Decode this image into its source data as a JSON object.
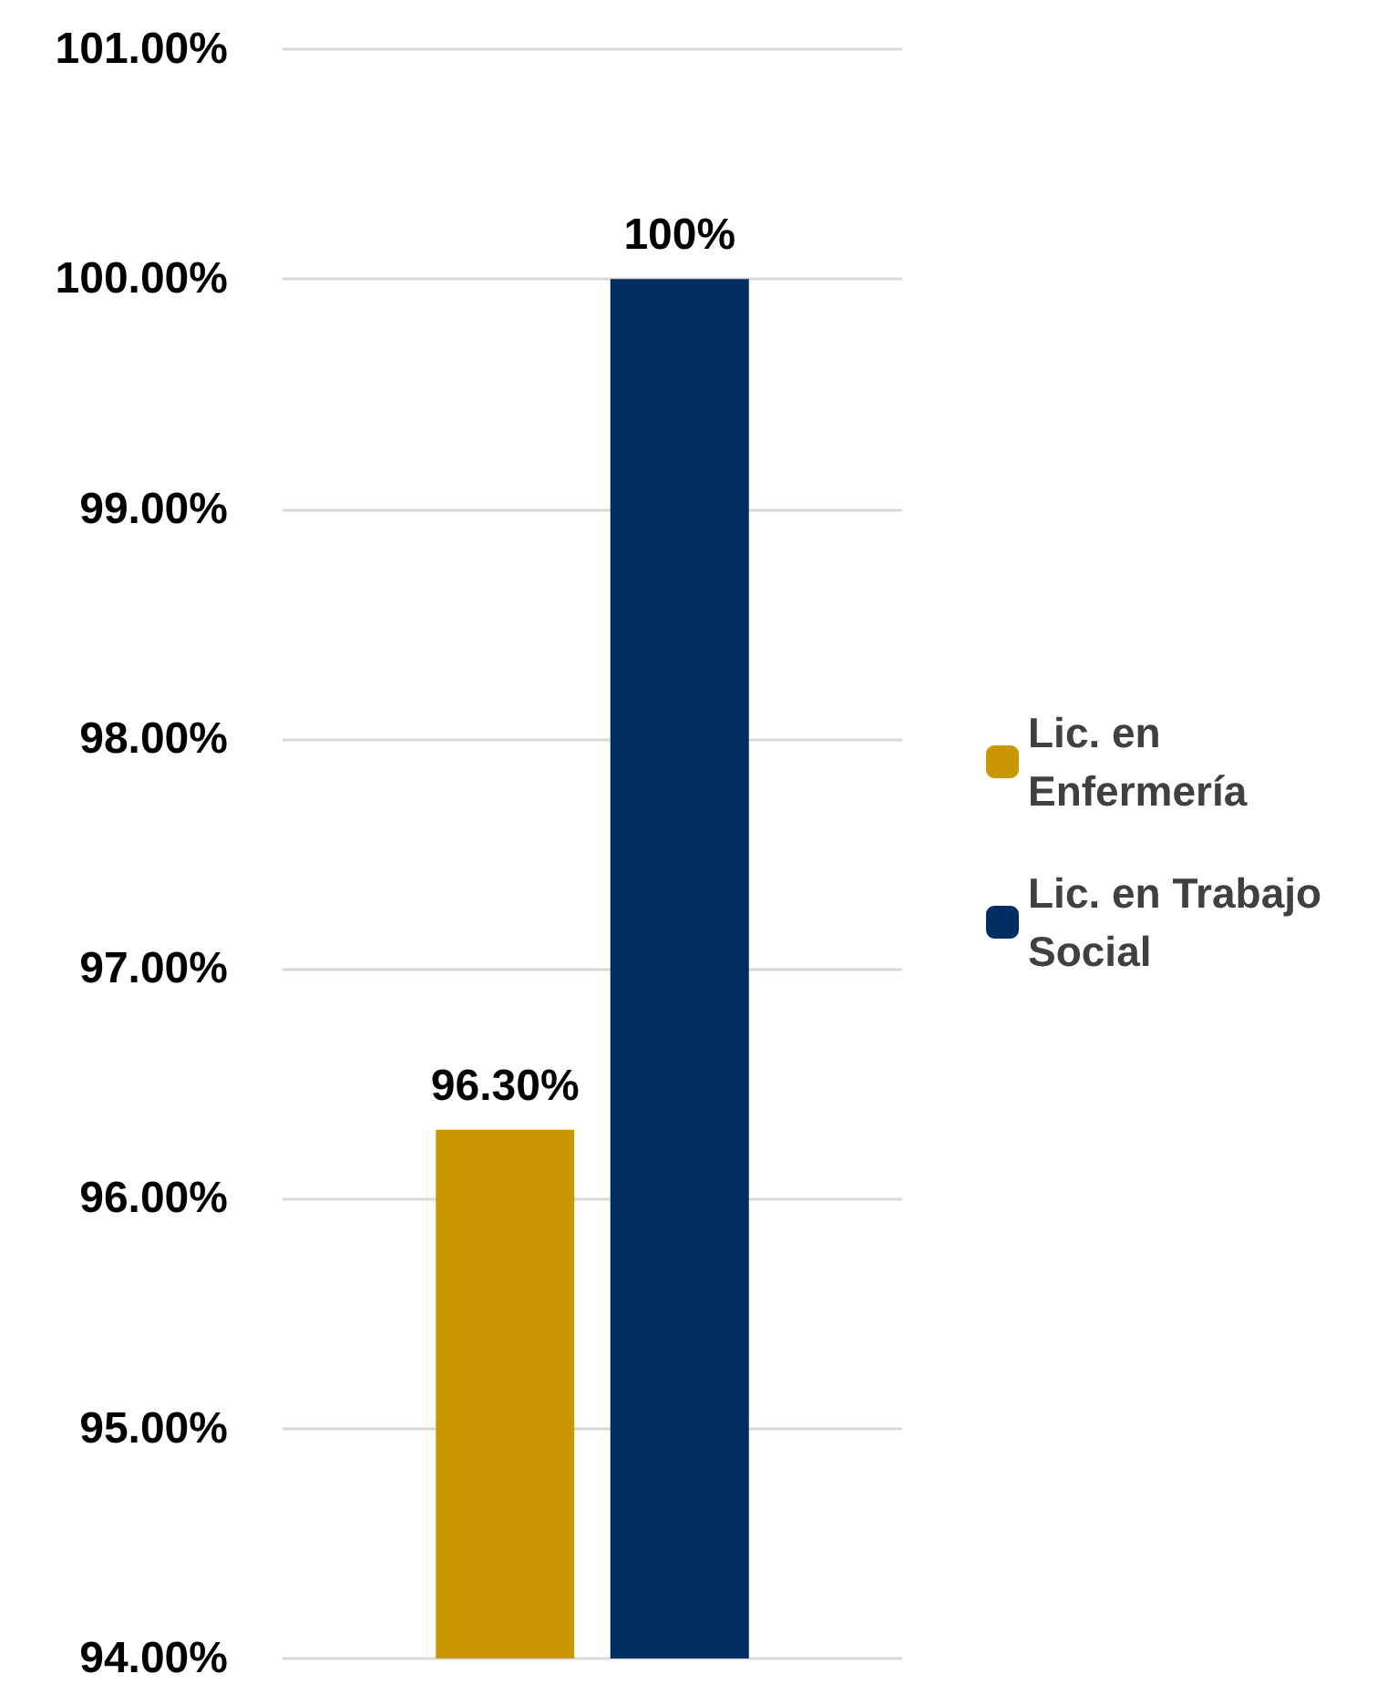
{
  "chart_data": {
    "type": "bar",
    "categories": [
      null
    ],
    "series": [
      {
        "name": "Lic. en Enfermería",
        "color": "#c99700",
        "values": [
          96.3
        ],
        "value_labels": [
          "96.30%"
        ]
      },
      {
        "name": "Lic. en Trabajo Social",
        "color": "#002d62",
        "values": [
          100
        ],
        "value_labels": [
          "100%"
        ]
      }
    ],
    "ylim": [
      94,
      101
    ],
    "yticks": [
      {
        "value": 94,
        "label": "94.00%"
      },
      {
        "value": 95,
        "label": "95.00%"
      },
      {
        "value": 96,
        "label": "96.00%"
      },
      {
        "value": 97,
        "label": "97.00%"
      },
      {
        "value": 98,
        "label": "98.00%"
      },
      {
        "value": 99,
        "label": "99.00%"
      },
      {
        "value": 100,
        "label": "100.00%"
      },
      {
        "value": 101,
        "label": "101.00%"
      }
    ],
    "grid": "y",
    "legend": "right"
  }
}
